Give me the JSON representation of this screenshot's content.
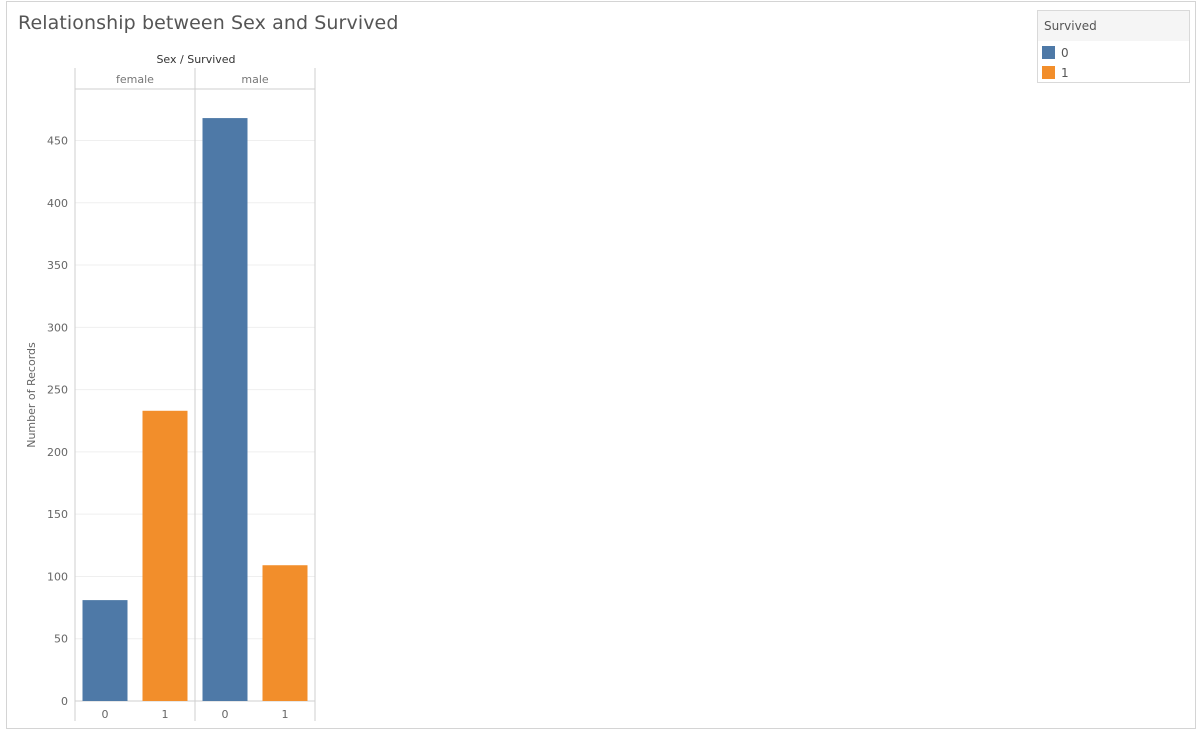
{
  "title": "Relationship between Sex and Survived",
  "legend": {
    "title": "Survived",
    "items": [
      {
        "label": "0",
        "color": "#4e79a7"
      },
      {
        "label": "1",
        "color": "#f28e2b"
      }
    ]
  },
  "chart_data": {
    "type": "bar",
    "header": "Sex / Survived",
    "ylabel": "Number of Records",
    "ylim": [
      0,
      500
    ],
    "yticks": [
      0,
      50,
      100,
      150,
      200,
      250,
      300,
      350,
      400,
      450
    ],
    "grid": true,
    "legend_position": "top-right",
    "groups": [
      {
        "name": "female",
        "categories": [
          "0",
          "1"
        ],
        "values": [
          81,
          233
        ]
      },
      {
        "name": "male",
        "categories": [
          "0",
          "1"
        ],
        "values": [
          468,
          109
        ]
      }
    ],
    "colors": {
      "0": "#4e79a7",
      "1": "#f28e2b"
    }
  }
}
